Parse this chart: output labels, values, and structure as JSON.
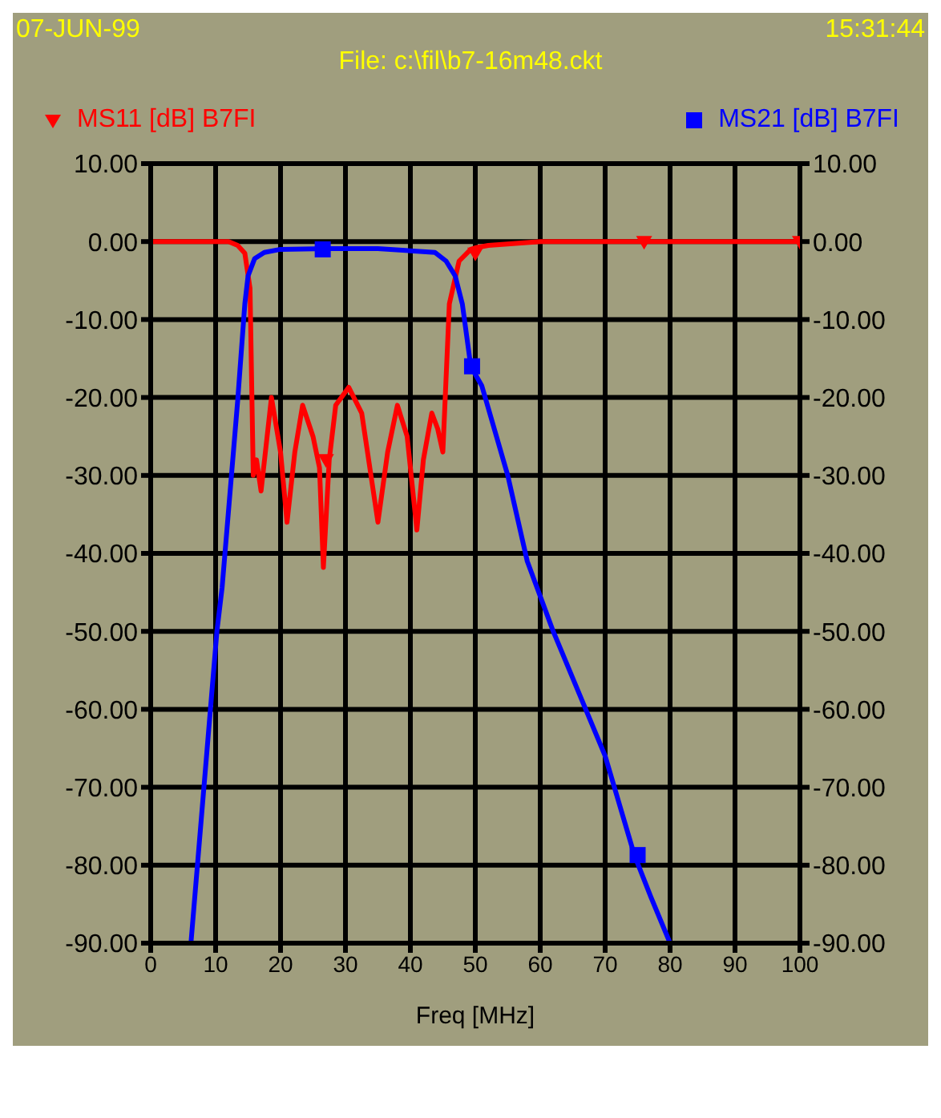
{
  "chart_data": {
    "type": "line",
    "subtitle": "File: c:\\fil\\b7-16m48.ckt",
    "annotations": [
      "07-JUN-99",
      "15:31:44"
    ],
    "xlabel": "Freq [MHz]",
    "xlim": [
      0,
      100
    ],
    "xticks": [
      0,
      10,
      20,
      30,
      40,
      50,
      60,
      70,
      80,
      90,
      100
    ],
    "ylim": [
      -90,
      10
    ],
    "yticks": [
      {
        "value": 10,
        "label": "10.00"
      },
      {
        "value": 0,
        "label": "0.00"
      },
      {
        "value": -10,
        "label": "-10.00"
      },
      {
        "value": -20,
        "label": "-20.00"
      },
      {
        "value": -30,
        "label": "-30.00"
      },
      {
        "value": -40,
        "label": "-40.00"
      },
      {
        "value": -50,
        "label": "-50.00"
      },
      {
        "value": -60,
        "label": "-60.00"
      },
      {
        "value": -70,
        "label": "-70.00"
      },
      {
        "value": -80,
        "label": "-80.00"
      },
      {
        "value": -90,
        "label": "-90.00"
      }
    ],
    "y2lim": [
      -90,
      10
    ],
    "y2ticks": [
      {
        "value": 10,
        "label": "10.00"
      },
      {
        "value": 0,
        "label": "0.00"
      },
      {
        "value": -10,
        "label": "-10.00"
      },
      {
        "value": -20,
        "label": "-20.00"
      },
      {
        "value": -30,
        "label": "-30.00"
      },
      {
        "value": -40,
        "label": "-40.00"
      },
      {
        "value": -50,
        "label": "-50.00"
      },
      {
        "value": -60,
        "label": "-60.00"
      },
      {
        "value": -70,
        "label": "-70.00"
      },
      {
        "value": -80,
        "label": "-80.00"
      },
      {
        "value": -90,
        "label": "-90.00"
      }
    ],
    "grid": true,
    "legend": "top",
    "line_style": "solid",
    "series": [
      {
        "name": "MS11 [dB] B7FI",
        "color": "#ff0000",
        "x": [
          0,
          12,
          13.4,
          14.5,
          15.3,
          15.8,
          16.3,
          17,
          18.6,
          20,
          21,
          22.2,
          23.4,
          25,
          26,
          26.6,
          27.5,
          28.5,
          30.5,
          32.5,
          35,
          36.5,
          38,
          39.5,
          41,
          42,
          43.3,
          44.2,
          45,
          46,
          47.5,
          49.3,
          50,
          52,
          60,
          70,
          80,
          90,
          100
        ],
        "values": [
          0,
          0,
          -0.5,
          -1.5,
          -6,
          -30,
          -28,
          -32,
          -20,
          -27,
          -36,
          -27,
          -21,
          -25,
          -29,
          -41.8,
          -28,
          -21,
          -18.7,
          -22,
          -36,
          -27,
          -21,
          -25,
          -37,
          -28,
          -22,
          -24,
          -27,
          -8,
          -2.5,
          -1,
          -0.8,
          -0.5,
          0,
          0,
          0,
          0,
          0
        ]
      },
      {
        "name": "MS21 [dB] B7FI",
        "color": "#0000ff",
        "x": [
          6.2,
          10.2,
          11,
          13.4,
          14.5,
          15,
          16,
          17.5,
          20,
          27,
          35,
          43.8,
          45.5,
          46.9,
          48,
          49.3,
          51,
          55,
          58,
          62,
          66,
          70,
          74.5,
          77,
          80
        ],
        "values": [
          -90,
          -50,
          -44.4,
          -20.4,
          -8,
          -4.4,
          -2.2,
          -1.4,
          -1,
          -0.9,
          -0.9,
          -1.4,
          -2.5,
          -4.4,
          -8,
          -16,
          -18.5,
          -30,
          -41,
          -50,
          -58,
          -66,
          -78.7,
          -84,
          -90
        ]
      },
      {
        "type": "scatter",
        "color": "#ff0000",
        "marker": "triangle",
        "x": [
          27,
          50,
          76,
          100
        ],
        "values": [
          -28,
          -1.5,
          0,
          0
        ]
      },
      {
        "type": "scatter",
        "color": "#0000ff",
        "marker": "square",
        "x": [
          26.5,
          49.5,
          75
        ],
        "values": [
          -1,
          -16,
          -78.7
        ]
      }
    ]
  }
}
